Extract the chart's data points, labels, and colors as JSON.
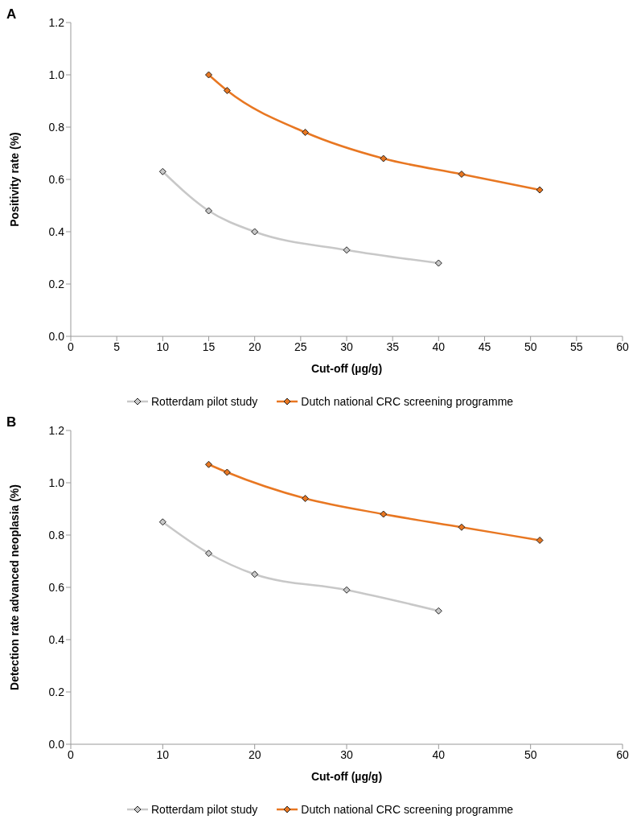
{
  "chart_data": [
    {
      "type": "line",
      "title": "A",
      "xlabel": "Cut-off (µg/g)",
      "ylabel": "Positivity rate (%)",
      "xlim": [
        0,
        60
      ],
      "xticks": [
        0,
        5,
        10,
        15,
        20,
        25,
        30,
        35,
        40,
        45,
        50,
        55,
        60
      ],
      "ylim": [
        0,
        1.2
      ],
      "yticks": [
        {
          "value": 0,
          "label": "0.0"
        },
        {
          "value": 0.2,
          "label": "0.2"
        },
        {
          "value": 0.4,
          "label": "0.4"
        },
        {
          "value": 0.6,
          "label": "0.6"
        },
        {
          "value": 0.8,
          "label": "0.8"
        },
        {
          "value": 1,
          "label": "1.0"
        },
        {
          "value": 1.2,
          "label": "1.2"
        }
      ],
      "grid": false,
      "legend": "bottom",
      "marker": "diamond",
      "line_style": "solid",
      "series": [
        {
          "name": "Rotterdam pilot study",
          "color": "#c8c8c8",
          "x": [
            10,
            15,
            20,
            30,
            40
          ],
          "values": [
            0.63,
            0.48,
            0.4,
            0.33,
            0.28
          ]
        },
        {
          "name": "Dutch national CRC screening programme",
          "color": "#e87722",
          "x": [
            15,
            17,
            25.5,
            34,
            42.5,
            51
          ],
          "values": [
            1.0,
            0.94,
            0.78,
            0.68,
            0.62,
            0.56
          ]
        }
      ]
    },
    {
      "type": "line",
      "title": "B",
      "xlabel": "Cut-off (µg/g)",
      "ylabel": "Detection rate advanced neoplasia (%)",
      "xlim": [
        0,
        60
      ],
      "xticks": [
        0,
        10,
        20,
        30,
        40,
        50,
        60
      ],
      "ylim": [
        0,
        1.2
      ],
      "yticks": [
        {
          "value": 0,
          "label": "0.0"
        },
        {
          "value": 0.2,
          "label": "0.2"
        },
        {
          "value": 0.4,
          "label": "0.4"
        },
        {
          "value": 0.6,
          "label": "0.6"
        },
        {
          "value": 0.8,
          "label": "0.8"
        },
        {
          "value": 1,
          "label": "1.0"
        },
        {
          "value": 1.2,
          "label": "1.2"
        }
      ],
      "grid": false,
      "legend": "bottom",
      "marker": "diamond",
      "line_style": "solid",
      "series": [
        {
          "name": "Rotterdam pilot study",
          "color": "#c8c8c8",
          "x": [
            10,
            15,
            20,
            30,
            40
          ],
          "values": [
            0.85,
            0.73,
            0.65,
            0.59,
            0.51
          ]
        },
        {
          "name": "Dutch national CRC screening programme",
          "color": "#e87722",
          "x": [
            15,
            17,
            25.5,
            34,
            42.5,
            51
          ],
          "values": [
            1.07,
            1.04,
            0.94,
            0.88,
            0.83,
            0.78
          ]
        }
      ]
    }
  ]
}
